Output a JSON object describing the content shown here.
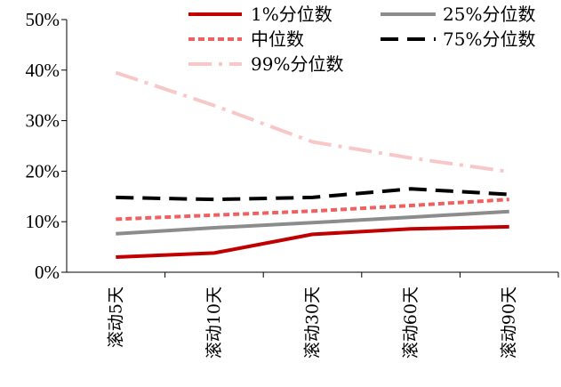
{
  "chart_data": {
    "type": "line",
    "categories": [
      "滚动5天",
      "滚动10天",
      "滚动30天",
      "滚动60天",
      "滚动90天"
    ],
    "yticks": [
      "0%",
      "10%",
      "20%",
      "30%",
      "40%",
      "50%"
    ],
    "ylim": [
      0,
      50
    ],
    "grid": false,
    "legend_position": "top",
    "series": [
      {
        "name": "1%分位数",
        "values": [
          3.0,
          3.8,
          7.5,
          8.6,
          9.0
        ],
        "color": "#c00000",
        "dash": "solid"
      },
      {
        "name": "25%分位数",
        "values": [
          7.6,
          8.8,
          9.8,
          10.9,
          12.0
        ],
        "color": "#8c8c8c",
        "dash": "solid"
      },
      {
        "name": "中位数",
        "values": [
          10.5,
          11.3,
          12.1,
          13.2,
          14.4
        ],
        "color": "#f06060",
        "dash": "short"
      },
      {
        "name": "75%分位数",
        "values": [
          14.8,
          14.4,
          14.8,
          16.5,
          15.4
        ],
        "color": "#000000",
        "dash": "long"
      },
      {
        "name": "99%分位数",
        "values": [
          39.5,
          33.0,
          25.8,
          22.6,
          19.9
        ],
        "color": "#f8c8c8",
        "dash": "dashdot"
      }
    ]
  }
}
